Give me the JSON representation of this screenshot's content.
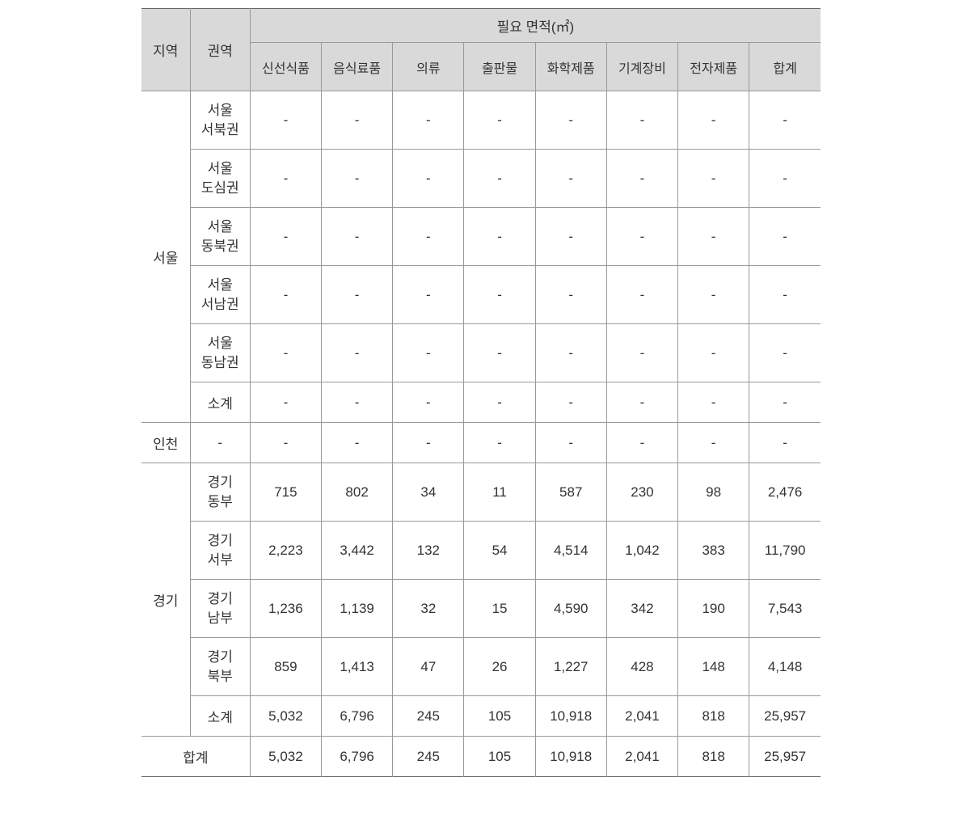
{
  "table": {
    "type": "table",
    "header": {
      "region": "지역",
      "zone": "권역",
      "area_title": "필요 면적(㎡)",
      "columns": [
        "신선식품",
        "음식료품",
        "의류",
        "출판물",
        "화학제품",
        "기계장비",
        "전자제품",
        "합계"
      ]
    },
    "regions": [
      {
        "name": "서울",
        "zones": [
          {
            "name_line1": "서울",
            "name_line2": "서북권",
            "single_line": false,
            "values": [
              "-",
              "-",
              "-",
              "-",
              "-",
              "-",
              "-",
              "-"
            ]
          },
          {
            "name_line1": "서울",
            "name_line2": "도심권",
            "single_line": false,
            "values": [
              "-",
              "-",
              "-",
              "-",
              "-",
              "-",
              "-",
              "-"
            ]
          },
          {
            "name_line1": "서울",
            "name_line2": "동북권",
            "single_line": false,
            "values": [
              "-",
              "-",
              "-",
              "-",
              "-",
              "-",
              "-",
              "-"
            ]
          },
          {
            "name_line1": "서울",
            "name_line2": "서남권",
            "single_line": false,
            "values": [
              "-",
              "-",
              "-",
              "-",
              "-",
              "-",
              "-",
              "-"
            ]
          },
          {
            "name_line1": "서울",
            "name_line2": "동남권",
            "single_line": false,
            "values": [
              "-",
              "-",
              "-",
              "-",
              "-",
              "-",
              "-",
              "-"
            ]
          },
          {
            "name_line1": "소계",
            "single_line": true,
            "values": [
              "-",
              "-",
              "-",
              "-",
              "-",
              "-",
              "-",
              "-"
            ]
          }
        ]
      },
      {
        "name": "인천",
        "single_zone": true,
        "zone_value": "-",
        "values": [
          "-",
          "-",
          "-",
          "-",
          "-",
          "-",
          "-",
          "-"
        ]
      },
      {
        "name": "경기",
        "zones": [
          {
            "name_line1": "경기",
            "name_line2": "동부",
            "single_line": false,
            "values": [
              "715",
              "802",
              "34",
              "11",
              "587",
              "230",
              "98",
              "2,476"
            ]
          },
          {
            "name_line1": "경기",
            "name_line2": "서부",
            "single_line": false,
            "values": [
              "2,223",
              "3,442",
              "132",
              "54",
              "4,514",
              "1,042",
              "383",
              "11,790"
            ]
          },
          {
            "name_line1": "경기",
            "name_line2": "남부",
            "single_line": false,
            "values": [
              "1,236",
              "1,139",
              "32",
              "15",
              "4,590",
              "342",
              "190",
              "7,543"
            ]
          },
          {
            "name_line1": "경기",
            "name_line2": "북부",
            "single_line": false,
            "values": [
              "859",
              "1,413",
              "47",
              "26",
              "1,227",
              "428",
              "148",
              "4,148"
            ]
          },
          {
            "name_line1": "소계",
            "single_line": true,
            "values": [
              "5,032",
              "6,796",
              "245",
              "105",
              "10,918",
              "2,041",
              "818",
              "25,957"
            ]
          }
        ]
      }
    ],
    "total": {
      "label": "합계",
      "values": [
        "5,032",
        "6,796",
        "245",
        "105",
        "10,918",
        "2,041",
        "818",
        "25,957"
      ]
    },
    "styling": {
      "header_bg": "#d9d9d9",
      "border_color": "#999999",
      "text_color": "#333333",
      "font_size_pt": 13,
      "cell_bg": "#ffffff",
      "outer_border_width": 1.5,
      "inner_border_width": 1
    }
  }
}
